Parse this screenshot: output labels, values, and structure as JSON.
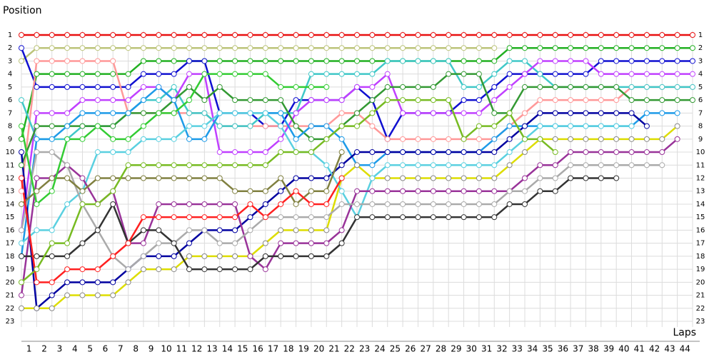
{
  "chart_data": {
    "type": "line",
    "title": "Position",
    "x_label": "Laps",
    "x": [
      0,
      1,
      2,
      3,
      4,
      5,
      6,
      7,
      8,
      9,
      10,
      11,
      12,
      13,
      14,
      15,
      16,
      17,
      18,
      19,
      20,
      21,
      22,
      23,
      24,
      25,
      26,
      27,
      28,
      29,
      30,
      31,
      32,
      33,
      34,
      35,
      36,
      37,
      38,
      39,
      40,
      41,
      42,
      43,
      44
    ],
    "xlim": [
      0,
      44
    ],
    "xticks": [
      1,
      2,
      3,
      4,
      5,
      6,
      7,
      8,
      9,
      10,
      11,
      12,
      13,
      14,
      15,
      16,
      17,
      18,
      19,
      20,
      21,
      22,
      23,
      24,
      25,
      26,
      27,
      28,
      29,
      30,
      31,
      32,
      33,
      34,
      35,
      36,
      37,
      38,
      39,
      40,
      41,
      42,
      43,
      44
    ],
    "ylim": [
      1,
      23
    ],
    "y_inverted": true,
    "yticks": [
      1,
      2,
      3,
      4,
      5,
      6,
      7,
      8,
      9,
      10,
      11,
      12,
      13,
      14,
      15,
      16,
      17,
      18,
      19,
      20,
      21,
      22,
      23
    ],
    "grid": true,
    "series": [
      {
        "color": "#e81010",
        "values": [
          1,
          1,
          1,
          1,
          1,
          1,
          1,
          1,
          1,
          1,
          1,
          1,
          1,
          1,
          1,
          1,
          1,
          1,
          1,
          1,
          1,
          1,
          1,
          1,
          1,
          1,
          1,
          1,
          1,
          1,
          1,
          1,
          1,
          1,
          1,
          1,
          1,
          1,
          1,
          1,
          1,
          1,
          1,
          1,
          1
        ]
      },
      {
        "color": "#bcc47a",
        "values": [
          3,
          2,
          2,
          2,
          2,
          2,
          2,
          2,
          2,
          2,
          2,
          2,
          2,
          2,
          2,
          2,
          2,
          2,
          2,
          2,
          2,
          2,
          2,
          2,
          2,
          2,
          2,
          2,
          2,
          2,
          2,
          2,
          null,
          null,
          null,
          null,
          null,
          null,
          null,
          null,
          null,
          null,
          null,
          null,
          null
        ]
      },
      {
        "color": "#22b022",
        "values": [
          9,
          4,
          4,
          4,
          4,
          4,
          4,
          4,
          3,
          3,
          3,
          3,
          3,
          3,
          3,
          3,
          3,
          3,
          3,
          3,
          3,
          3,
          3,
          3,
          3,
          3,
          3,
          3,
          3,
          3,
          3,
          3,
          2,
          2,
          2,
          2,
          2,
          2,
          2,
          2,
          2,
          2,
          2,
          2,
          2
        ]
      },
      {
        "color": "#1010d0",
        "values": [
          2,
          5,
          5,
          5,
          5,
          5,
          5,
          5,
          4,
          4,
          4,
          3,
          3,
          7,
          7,
          7,
          8,
          8,
          6,
          6,
          6,
          6,
          5,
          6,
          9,
          7,
          7,
          7,
          7,
          6,
          6,
          5,
          4,
          4,
          4,
          4,
          4,
          4,
          3,
          3,
          3,
          3,
          3,
          3,
          3
        ]
      },
      {
        "color": "#ff9999",
        "values": [
          13,
          3,
          3,
          3,
          3,
          3,
          3,
          7,
          7,
          7,
          7,
          7,
          7,
          8,
          8,
          8,
          8,
          8,
          8,
          8,
          8,
          7,
          7,
          8,
          9,
          9,
          9,
          9,
          9,
          9,
          9,
          9,
          8,
          7,
          6,
          6,
          6,
          6,
          6,
          6,
          5,
          5,
          5,
          5,
          5
        ]
      },
      {
        "color": "#40c8c8",
        "values": [
          6,
          9,
          9,
          9,
          8,
          8,
          8,
          7,
          6,
          6,
          5,
          7,
          7,
          8,
          8,
          8,
          7,
          7,
          7,
          4,
          4,
          4,
          4,
          4,
          3,
          3,
          3,
          3,
          3,
          5,
          5,
          4,
          3,
          3,
          4,
          5,
          5,
          5,
          5,
          5,
          5,
          5,
          5,
          5,
          5
        ]
      },
      {
        "color": "#c040ff",
        "values": [
          16,
          7,
          7,
          7,
          6,
          6,
          6,
          6,
          5,
          5,
          6,
          4,
          4,
          10,
          10,
          10,
          10,
          9,
          7,
          6,
          6,
          6,
          5,
          5,
          4,
          7,
          7,
          7,
          7,
          7,
          7,
          6,
          5,
          4,
          3,
          3,
          3,
          3,
          4,
          4,
          4,
          4,
          4,
          4,
          4
        ]
      },
      {
        "color": "#339933",
        "values": [
          11,
          8,
          8,
          8,
          8,
          8,
          8,
          7,
          7,
          7,
          6,
          5,
          6,
          5,
          6,
          6,
          6,
          6,
          8,
          9,
          9,
          8,
          7,
          6,
          5,
          5,
          5,
          5,
          4,
          4,
          4,
          7,
          7,
          5,
          5,
          5,
          5,
          5,
          5,
          5,
          6,
          6,
          6,
          6,
          6
        ]
      },
      {
        "color": "#1e9be8",
        "values": [
          18,
          9,
          9,
          8,
          7,
          7,
          7,
          7,
          6,
          5,
          6,
          9,
          9,
          7,
          7,
          7,
          7,
          7,
          9,
          8,
          8,
          9,
          11,
          11,
          10,
          10,
          10,
          10,
          10,
          10,
          10,
          9,
          8,
          8,
          8,
          8,
          8,
          8,
          8,
          8,
          8,
          7,
          7,
          7,
          null
        ]
      },
      {
        "color": "#0000a0",
        "values": [
          10,
          22,
          21,
          20,
          20,
          20,
          20,
          19,
          18,
          18,
          18,
          17,
          16,
          16,
          16,
          15,
          14,
          13,
          12,
          12,
          12,
          11,
          10,
          10,
          10,
          10,
          10,
          10,
          10,
          10,
          10,
          10,
          9,
          8,
          7,
          7,
          7,
          7,
          7,
          7,
          7,
          8,
          null,
          null,
          null
        ]
      },
      {
        "color": "#dddd00",
        "values": [
          22,
          22,
          22,
          21,
          21,
          21,
          21,
          20,
          19,
          19,
          19,
          18,
          18,
          18,
          18,
          18,
          17,
          16,
          16,
          16,
          16,
          12,
          11,
          12,
          12,
          12,
          12,
          12,
          12,
          12,
          12,
          12,
          11,
          10,
          9,
          9,
          9,
          9,
          9,
          9,
          9,
          9,
          9,
          8,
          null
        ]
      },
      {
        "color": "#5ad0e0",
        "values": [
          17,
          16,
          16,
          14,
          13,
          10,
          10,
          10,
          9,
          9,
          9,
          8,
          8,
          7,
          7,
          7,
          7,
          8,
          10,
          10,
          11,
          13,
          15,
          12,
          11,
          11,
          11,
          11,
          11,
          11,
          11,
          11,
          10,
          9,
          8,
          8,
          8,
          8,
          8,
          8,
          8,
          null,
          null,
          null,
          null
        ]
      },
      {
        "color": "#993399",
        "values": [
          21,
          12,
          12,
          11,
          12,
          14,
          13,
          17,
          17,
          14,
          14,
          14,
          14,
          14,
          14,
          18,
          19,
          17,
          17,
          17,
          17,
          16,
          13,
          13,
          13,
          13,
          13,
          13,
          13,
          13,
          13,
          13,
          13,
          12,
          11,
          11,
          10,
          10,
          10,
          10,
          10,
          10,
          10,
          9,
          null
        ]
      },
      {
        "color": "#aaaaaa",
        "values": [
          16,
          10,
          10,
          11,
          14,
          16,
          18,
          19,
          18,
          17,
          17,
          16,
          16,
          17,
          17,
          16,
          15,
          15,
          15,
          15,
          15,
          14,
          14,
          14,
          14,
          14,
          14,
          14,
          14,
          14,
          14,
          14,
          13,
          13,
          12,
          12,
          11,
          11,
          11,
          11,
          11,
          11,
          11,
          null,
          null
        ]
      },
      {
        "color": "#333333",
        "values": [
          18,
          18,
          18,
          18,
          17,
          16,
          14,
          17,
          16,
          16,
          17,
          19,
          19,
          19,
          19,
          19,
          18,
          18,
          18,
          18,
          18,
          17,
          15,
          15,
          15,
          15,
          15,
          15,
          15,
          15,
          15,
          15,
          14,
          14,
          13,
          13,
          12,
          12,
          12,
          12,
          null,
          null,
          null,
          null,
          null
        ]
      },
      {
        "color": "#808040",
        "values": [
          14,
          13,
          12,
          12,
          13,
          12,
          12,
          12,
          12,
          12,
          12,
          12,
          12,
          12,
          13,
          13,
          13,
          12,
          14,
          13,
          13,
          10,
          null,
          null,
          null,
          null,
          null,
          null,
          null,
          null,
          null,
          null,
          null,
          null,
          null,
          null,
          null,
          null,
          null,
          null,
          null,
          null,
          null,
          null,
          null
        ]
      },
      {
        "color": "#33cc33",
        "values": [
          8,
          14,
          13,
          9,
          9,
          8,
          9,
          9,
          8,
          7,
          7,
          6,
          4,
          4,
          4,
          4,
          4,
          5,
          5,
          5,
          5,
          null,
          null,
          null,
          null,
          null,
          null,
          null,
          null,
          null,
          null,
          null,
          null,
          null,
          null,
          null,
          null,
          null,
          null,
          null,
          null,
          null,
          null,
          null,
          null
        ]
      },
      {
        "color": "#77bb22",
        "values": [
          20,
          19,
          17,
          17,
          14,
          14,
          13,
          11,
          11,
          11,
          11,
          11,
          11,
          11,
          11,
          11,
          11,
          10,
          10,
          10,
          9,
          8,
          8,
          7,
          6,
          6,
          6,
          6,
          6,
          9,
          8,
          8,
          7,
          9,
          9,
          10,
          null,
          null,
          null,
          null,
          null,
          null,
          null,
          null,
          null
        ]
      },
      {
        "color": "#ff2020",
        "values": [
          12,
          20,
          20,
          19,
          19,
          19,
          18,
          17,
          15,
          15,
          15,
          15,
          15,
          15,
          15,
          14,
          15,
          14,
          13,
          14,
          14,
          12,
          null,
          null,
          null,
          null,
          null,
          null,
          null,
          null,
          null,
          null,
          null,
          null,
          null,
          null,
          null,
          null,
          null,
          null,
          null,
          null,
          null,
          null,
          null
        ]
      }
    ]
  }
}
